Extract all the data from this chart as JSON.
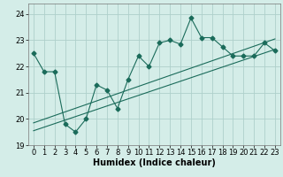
{
  "xlabel": "Humidex (Indice chaleur)",
  "bg_color": "#d4ede8",
  "grid_color": "#aed0cb",
  "line_color": "#1a6b5a",
  "xlim": [
    -0.5,
    23.5
  ],
  "ylim": [
    19.0,
    24.4
  ],
  "yticks": [
    19,
    20,
    21,
    22,
    23,
    24
  ],
  "xticks": [
    0,
    1,
    2,
    3,
    4,
    5,
    6,
    7,
    8,
    9,
    10,
    11,
    12,
    13,
    14,
    15,
    16,
    17,
    18,
    19,
    20,
    21,
    22,
    23
  ],
  "main_x": [
    0,
    1,
    2,
    3,
    4,
    5,
    6,
    7,
    8,
    9,
    10,
    11,
    12,
    13,
    14,
    15,
    16,
    17,
    18,
    19,
    20,
    21,
    22,
    23
  ],
  "main_y": [
    22.5,
    21.8,
    21.8,
    19.8,
    19.5,
    20.0,
    21.3,
    21.1,
    20.4,
    21.5,
    22.4,
    22.0,
    22.9,
    23.0,
    22.85,
    23.85,
    23.1,
    23.1,
    22.75,
    22.4,
    22.4,
    22.4,
    22.9,
    22.6
  ],
  "line1_x": [
    0,
    23
  ],
  "line1_y": [
    19.55,
    22.65
  ],
  "line2_x": [
    0,
    23
  ],
  "line2_y": [
    19.85,
    23.05
  ],
  "marker": "D",
  "markersize": 2.5,
  "linewidth": 0.8,
  "tick_fontsize": 6,
  "label_fontsize": 7
}
